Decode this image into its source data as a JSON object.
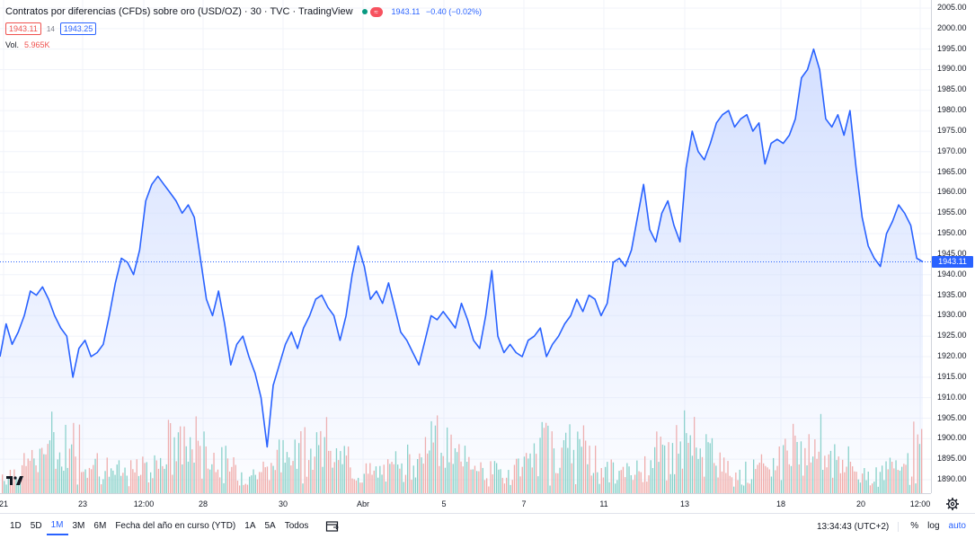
{
  "legend": {
    "title": "Contratos por diferencias (CFDs) sobre oro (USD/OZ) · 30 · TVC · TradingView",
    "last_quote": "1943.11",
    "change": "−0.40 (−0.02%)",
    "sell_price": "1943.11",
    "spread": "14",
    "buy_price": "1943.25",
    "volume_label": "Vol.",
    "volume_value": "5.965K",
    "status_pill_label": "≈"
  },
  "price_axis": {
    "ticks": [
      "2005.00",
      "2000.00",
      "1995.00",
      "1990.00",
      "1985.00",
      "1980.00",
      "1975.00",
      "1970.00",
      "1965.00",
      "1960.00",
      "1955.00",
      "1950.00",
      "1945.00",
      "1940.00",
      "1935.00",
      "1930.00",
      "1925.00",
      "1920.00",
      "1915.00",
      "1910.00",
      "1905.00",
      "1900.00",
      "1895.00",
      "1890.00"
    ],
    "last_price_tag": "1943.11"
  },
  "time_axis": {
    "ticks": [
      "21",
      "23",
      "12:00",
      "28",
      "30",
      "Abr",
      "5",
      "7",
      "11",
      "13",
      "18",
      "20",
      "12:00"
    ]
  },
  "bottom_bar": {
    "ranges": [
      "1D",
      "5D",
      "1M",
      "3M",
      "6M",
      "Fecha del año en curso (YTD)",
      "1A",
      "5A",
      "Todos"
    ],
    "active_range": "1M",
    "clock": "13:34:43 (UTC+2)",
    "percent_label": "%",
    "log_label": "log",
    "auto_label": "auto"
  },
  "colors": {
    "line": "#2962ff",
    "area_top": "#cfdcff",
    "up_volume": "#7fcfc3",
    "down_volume": "#f3a7a2",
    "accent": "#2962ff"
  },
  "chart_data": {
    "type": "area",
    "symbol": "USD/OZ",
    "interval": "30",
    "ylim": [
      1887,
      2006
    ],
    "x_ticks": [
      "21",
      "23",
      "12:00",
      "28",
      "30",
      "Abr",
      "5",
      "7",
      "11",
      "13",
      "18",
      "20",
      "12:00"
    ],
    "series": [
      {
        "name": "Contratos por diferencias (CFDs) sobre oro (USD/OZ)",
        "values": [
          1920,
          1928,
          1923,
          1926,
          1930,
          1936,
          1935,
          1937,
          1934,
          1930,
          1927,
          1925,
          1915,
          1922,
          1924,
          1920,
          1921,
          1923,
          1930,
          1938,
          1944,
          1943,
          1940,
          1946,
          1958,
          1962,
          1964,
          1962,
          1960,
          1958,
          1955,
          1957,
          1954,
          1944,
          1934,
          1930,
          1936,
          1928,
          1918,
          1923,
          1925,
          1920,
          1916,
          1910,
          1898,
          1913,
          1918,
          1923,
          1926,
          1922,
          1927,
          1930,
          1934,
          1935,
          1932,
          1930,
          1924,
          1930,
          1940,
          1947,
          1942,
          1934,
          1936,
          1933,
          1938,
          1932,
          1926,
          1924,
          1921,
          1918,
          1924,
          1930,
          1929,
          1931,
          1929,
          1927,
          1933,
          1929,
          1924,
          1922,
          1930,
          1941,
          1925,
          1921,
          1923,
          1921,
          1920,
          1924,
          1925,
          1927,
          1920,
          1923,
          1925,
          1928,
          1930,
          1934,
          1931,
          1935,
          1934,
          1930,
          1933,
          1943,
          1944,
          1942,
          1946,
          1954,
          1962,
          1951,
          1948,
          1955,
          1958,
          1952,
          1948,
          1966,
          1975,
          1970,
          1968,
          1972,
          1977,
          1979,
          1980,
          1976,
          1978,
          1979,
          1975,
          1977,
          1967,
          1972,
          1973,
          1972,
          1974,
          1978,
          1988,
          1990,
          1995,
          1990,
          1978,
          1976,
          1979,
          1974,
          1980,
          1966,
          1954,
          1947,
          1944,
          1942,
          1950,
          1953,
          1957,
          1955,
          1952,
          1944,
          1943.11
        ]
      }
    ]
  }
}
